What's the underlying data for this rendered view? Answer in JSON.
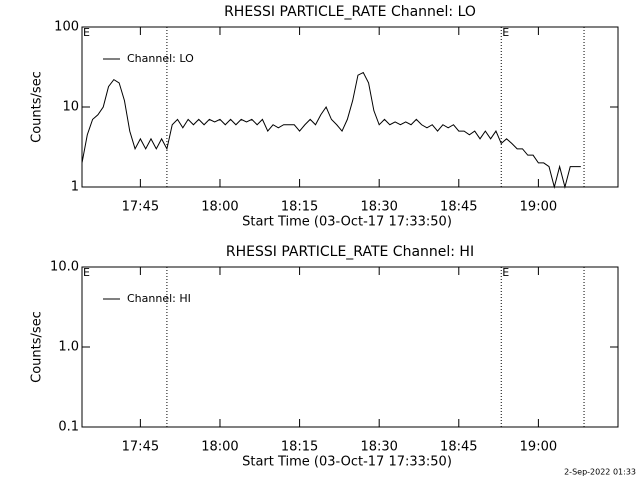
{
  "chart_data": [
    {
      "type": "line",
      "title": "RHESSI PARTICLE_RATE Channel: LO",
      "xlabel": "Start Time (03-Oct-17 17:33:50)",
      "ylabel": "Counts/sec",
      "log_y": true,
      "legend": "upper left",
      "xlim": [
        1054,
        1155
      ],
      "ylim": [
        1,
        100
      ],
      "xticks": [
        {
          "value": 1065,
          "label": "17:45"
        },
        {
          "value": 1080,
          "label": "18:00"
        },
        {
          "value": 1095,
          "label": "18:15"
        },
        {
          "value": 1110,
          "label": "18:30"
        },
        {
          "value": 1125,
          "label": "18:45"
        },
        {
          "value": 1140,
          "label": "19:00"
        }
      ],
      "yticks": [
        1,
        10,
        100
      ],
      "vlines": [
        1070,
        1133,
        1148.6
      ],
      "annotations": [
        {
          "x": 1054,
          "text": "E"
        },
        {
          "x": 1133,
          "text": "E"
        }
      ],
      "x": [
        1054,
        1055,
        1056,
        1057,
        1058,
        1059,
        1060,
        1061,
        1062,
        1063,
        1064,
        1065,
        1066,
        1067,
        1068,
        1069,
        1070,
        1071,
        1072,
        1073,
        1074,
        1075,
        1076,
        1077,
        1078,
        1079,
        1080,
        1081,
        1082,
        1083,
        1084,
        1085,
        1086,
        1087,
        1088,
        1089,
        1090,
        1091,
        1092,
        1093,
        1094,
        1095,
        1096,
        1097,
        1098,
        1099,
        1100,
        1101,
        1102,
        1103,
        1104,
        1105,
        1106,
        1107,
        1108,
        1109,
        1110,
        1111,
        1112,
        1113,
        1114,
        1115,
        1116,
        1117,
        1118,
        1119,
        1120,
        1121,
        1122,
        1123,
        1124,
        1125,
        1126,
        1127,
        1128,
        1129,
        1130,
        1131,
        1132,
        1133,
        1134,
        1135,
        1136,
        1137,
        1138,
        1139,
        1140,
        1141,
        1142,
        1143,
        1144,
        1145,
        1146,
        1147,
        1148
      ],
      "series": [
        {
          "name": "Channel: LO",
          "color": "#000000",
          "values": [
            2,
            4.5,
            7,
            8,
            10,
            18,
            22,
            20,
            12,
            5,
            3,
            4,
            3,
            4,
            3,
            4,
            3,
            6,
            7,
            5.5,
            7,
            6,
            7,
            6,
            7,
            6.5,
            7,
            6,
            7,
            6,
            7,
            6.5,
            7,
            6,
            7,
            5,
            6,
            5.5,
            6,
            6,
            6,
            5,
            6,
            7,
            6,
            8,
            10,
            7,
            6,
            5,
            7,
            12,
            25,
            27,
            20,
            9,
            6,
            7,
            6,
            6.5,
            6,
            6.5,
            6,
            7,
            6,
            5.5,
            6,
            5,
            6,
            5.5,
            6,
            5,
            5,
            4.5,
            5,
            4,
            5,
            4,
            5,
            3.5,
            4,
            3.5,
            3,
            3,
            2.5,
            2.5,
            2,
            2,
            1.8,
            1,
            1.8,
            1,
            1.8,
            1.8,
            1.8
          ]
        }
      ]
    },
    {
      "type": "line",
      "title": "RHESSI PARTICLE_RATE Channel: HI",
      "xlabel": "Start Time (03-Oct-17 17:33:50)",
      "ylabel": "Counts/sec",
      "log_y": true,
      "legend": "upper left",
      "xlim": [
        1054,
        1155
      ],
      "ylim": [
        0.1,
        10
      ],
      "xticks": [
        {
          "value": 1065,
          "label": "17:45"
        },
        {
          "value": 1080,
          "label": "18:00"
        },
        {
          "value": 1095,
          "label": "18:15"
        },
        {
          "value": 1110,
          "label": "18:30"
        },
        {
          "value": 1125,
          "label": "18:45"
        },
        {
          "value": 1140,
          "label": "19:00"
        }
      ],
      "yticks": [
        0.1,
        {
          "value": 1,
          "label": "1.0"
        },
        {
          "value": 10,
          "label": "10.0"
        }
      ],
      "vlines": [
        1070,
        1133,
        1148.6
      ],
      "annotations": [
        {
          "x": 1054,
          "text": "E"
        },
        {
          "x": 1133,
          "text": "E"
        }
      ],
      "x": [],
      "series": [
        {
          "name": "Channel: HI",
          "color": "#000000",
          "values": []
        }
      ]
    }
  ],
  "footer": "2-Sep-2022 01:33"
}
